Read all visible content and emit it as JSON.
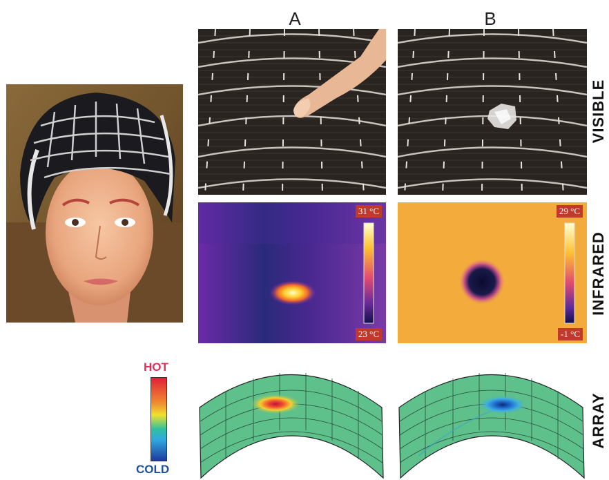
{
  "columns": {
    "a": "A",
    "b": "B"
  },
  "rows": {
    "visible": "VISIBLE",
    "infrared": "INFRARED",
    "array": "ARRAY"
  },
  "infrared_a": {
    "max": "31 °C",
    "min": "23 °C"
  },
  "infrared_b": {
    "max": "29 °C",
    "min": "-1 °C"
  },
  "scale": {
    "hot": "HOT",
    "cold": "COLD",
    "hot_color": "#e0305a",
    "cold_color": "#1e4fa0"
  }
}
